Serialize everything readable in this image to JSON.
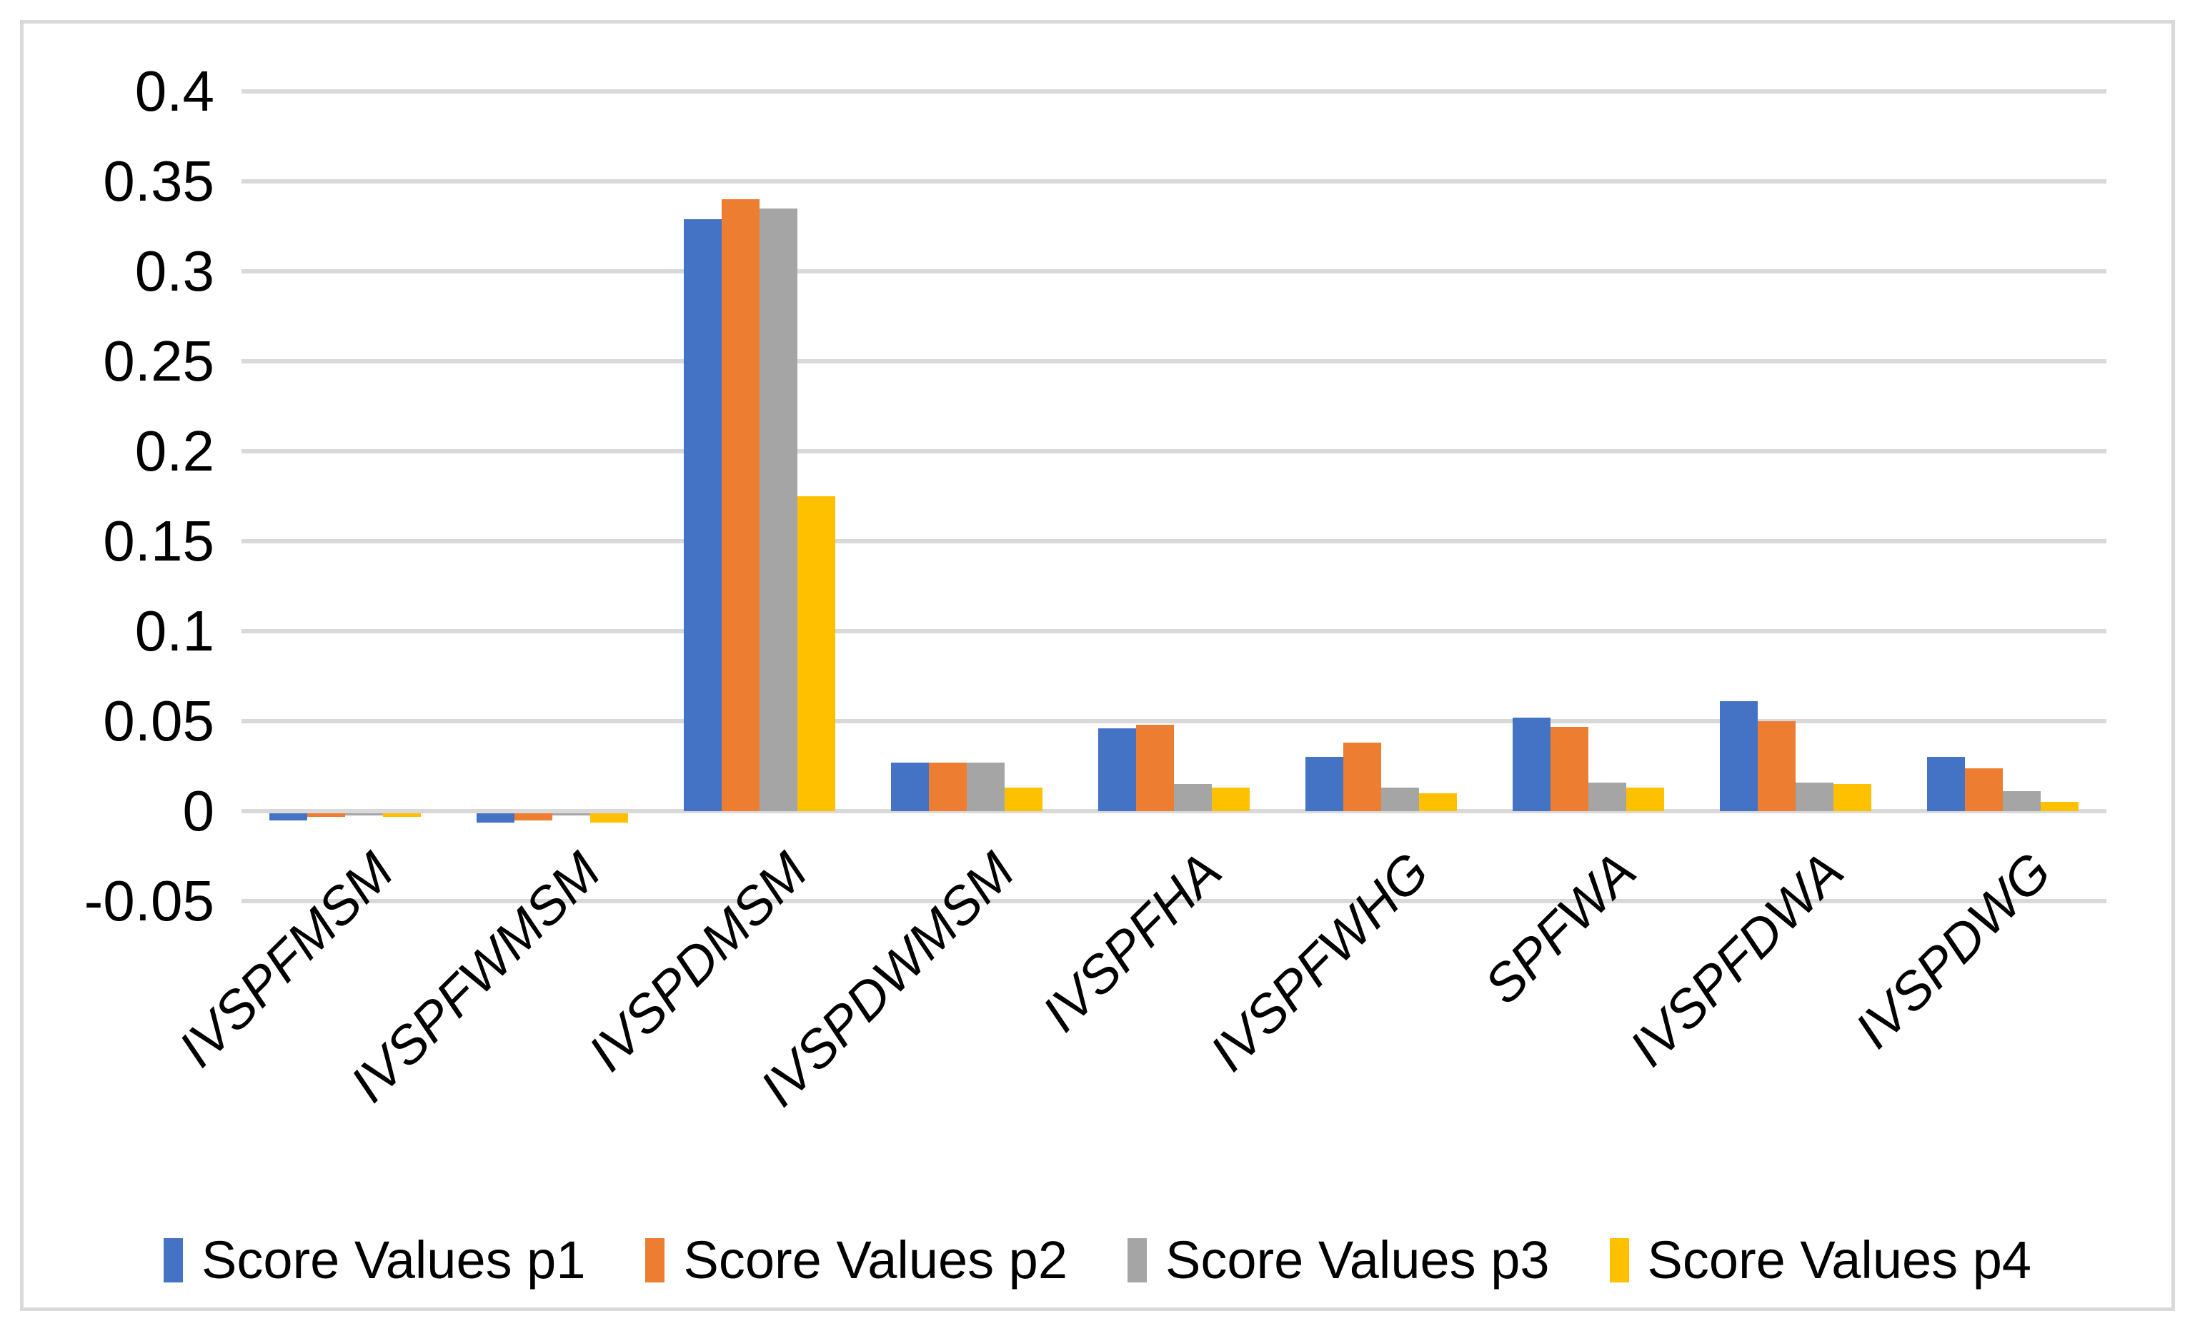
{
  "chart_data": {
    "type": "bar",
    "title": "",
    "xlabel": "",
    "ylabel": "",
    "categories": [
      "IVSPFMSM",
      "IVSPFWMSM",
      "IVSPDMSM",
      "IVSPDWMSM",
      "IVSPFHA",
      "IVSPFWHG",
      "SPFWA",
      "IVSPFDWA",
      "IVSPDWG"
    ],
    "series": [
      {
        "name": "Score Values p1",
        "color": "#4472C4",
        "values": [
          -0.004,
          -0.005,
          0.329,
          0.027,
          0.046,
          0.03,
          0.052,
          0.061,
          0.03
        ]
      },
      {
        "name": "Score Values p2",
        "color": "#ED7D31",
        "values": [
          -0.002,
          -0.004,
          0.34,
          0.027,
          0.048,
          0.038,
          0.047,
          0.05,
          0.024
        ]
      },
      {
        "name": "Score Values p3",
        "color": "#A5A5A5",
        "values": [
          -0.001,
          -0.001,
          0.335,
          0.027,
          0.015,
          0.013,
          0.016,
          0.016,
          0.011
        ]
      },
      {
        "name": "Score Values p4",
        "color": "#FFC000",
        "values": [
          -0.002,
          -0.005,
          0.175,
          0.013,
          0.013,
          0.01,
          0.013,
          0.015,
          0.005
        ]
      }
    ],
    "ylim": [
      -0.05,
      0.4
    ],
    "ytick_step": 0.05,
    "ytick_labels": [
      "0.4",
      "0.35",
      "0.3",
      "0.25",
      "0.2",
      "0.15",
      "0.1",
      "0.05",
      "0",
      "-0.05"
    ],
    "grid": "horizontal",
    "gridline_color": "#D9D9D9",
    "axis_text_color": "#000000",
    "chart_border_color": "#D9D9D9",
    "background_color": "#FFFFFF",
    "legend_position": "bottom",
    "x_label_rotation_deg": 45
  }
}
